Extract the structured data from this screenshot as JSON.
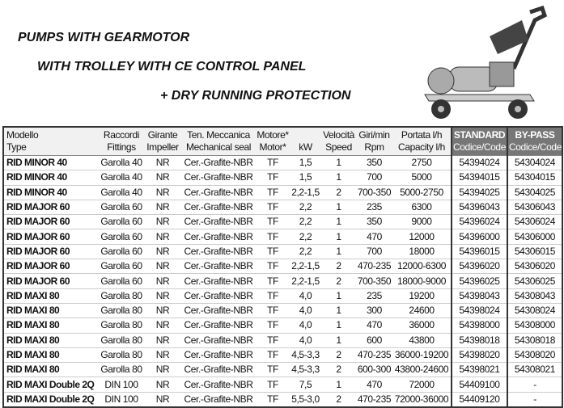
{
  "title": [
    "PUMPS WITH GEARMOTOR",
    "WITH TROLLEY WITH CE CONTROL PANEL",
    "+ DRY RUNNING PROTECTION"
  ],
  "headers": [
    [
      "Modello",
      "Type"
    ],
    [
      "Raccordi",
      "Fittings"
    ],
    [
      "Girante",
      "Impeller"
    ],
    [
      "Ten. Meccanica",
      "Mechanical seal"
    ],
    [
      "Motore*",
      "Motor*"
    ],
    [
      "kW",
      ""
    ],
    [
      "Velocità",
      "Speed"
    ],
    [
      "Giri/min",
      "Rpm"
    ],
    [
      "Portata l/h",
      "Capacity l/h"
    ],
    [
      "STANDARD",
      "Codice/Code"
    ],
    [
      "BY-PASS",
      "Codice/Code"
    ]
  ],
  "rows": [
    [
      "RID MINOR 40",
      "Garolla 40",
      "NR",
      "Cer.-Grafite-NBR",
      "TF",
      "1,5",
      "1",
      "350",
      "2750",
      "54394024",
      "54304024"
    ],
    [
      "RID MINOR 40",
      "Garolla 40",
      "NR",
      "Cer.-Grafite-NBR",
      "TF",
      "1,5",
      "1",
      "700",
      "5000",
      "54394015",
      "54304015"
    ],
    [
      "RID MINOR 40",
      "Garolla 40",
      "NR",
      "Cer.-Grafite-NBR",
      "TF",
      "2,2-1,5",
      "2",
      "700-350",
      "5000-2750",
      "54394025",
      "54304025"
    ],
    [
      "RID MAJOR 60",
      "Garolla 60",
      "NR",
      "Cer.-Grafite-NBR",
      "TF",
      "2,2",
      "1",
      "235",
      "6300",
      "54396043",
      "54306043"
    ],
    [
      "RID MAJOR 60",
      "Garolla 60",
      "NR",
      "Cer.-Grafite-NBR",
      "TF",
      "2,2",
      "1",
      "350",
      "9000",
      "54396024",
      "54306024"
    ],
    [
      "RID MAJOR 60",
      "Garolla 60",
      "NR",
      "Cer.-Grafite-NBR",
      "TF",
      "2,2",
      "1",
      "470",
      "12000",
      "54396000",
      "54306000"
    ],
    [
      "RID MAJOR 60",
      "Garolla 60",
      "NR",
      "Cer.-Grafite-NBR",
      "TF",
      "2,2",
      "1",
      "700",
      "18000",
      "54396015",
      "54306015"
    ],
    [
      "RID MAJOR 60",
      "Garolla 60",
      "NR",
      "Cer.-Grafite-NBR",
      "TF",
      "2,2-1,5",
      "2",
      "470-235",
      "12000-6300",
      "54396020",
      "54306020"
    ],
    [
      "RID MAJOR 60",
      "Garolla 60",
      "NR",
      "Cer.-Grafite-NBR",
      "TF",
      "2,2-1,5",
      "2",
      "700-350",
      "18000-9000",
      "54396025",
      "54306025"
    ],
    [
      "RID MAXI 80",
      "Garolla 80",
      "NR",
      "Cer.-Grafite-NBR",
      "TF",
      "4,0",
      "1",
      "235",
      "19200",
      "54398043",
      "54308043"
    ],
    [
      "RID MAXI 80",
      "Garolla 80",
      "NR",
      "Cer.-Grafite-NBR",
      "TF",
      "4,0",
      "1",
      "300",
      "24600",
      "54398024",
      "54308024"
    ],
    [
      "RID MAXI 80",
      "Garolla 80",
      "NR",
      "Cer.-Grafite-NBR",
      "TF",
      "4,0",
      "1",
      "470",
      "36000",
      "54398000",
      "54308000"
    ],
    [
      "RID MAXI 80",
      "Garolla 80",
      "NR",
      "Cer.-Grafite-NBR",
      "TF",
      "4,0",
      "1",
      "600",
      "43800",
      "54398018",
      "54308018"
    ],
    [
      "RID MAXI 80",
      "Garolla 80",
      "NR",
      "Cer.-Grafite-NBR",
      "TF",
      "4,5-3,3",
      "2",
      "470-235",
      "36000-19200",
      "54398020",
      "54308020"
    ],
    [
      "RID MAXI 80",
      "Garolla 80",
      "NR",
      "Cer.-Grafite-NBR",
      "TF",
      "4,5-3,3",
      "2",
      "600-300",
      "43800-24600",
      "54398021",
      "54308021"
    ],
    [
      "RID MAXI Double 2Q",
      "DIN 100",
      "NR",
      "Cer.-Grafite-NBR",
      "TF",
      "7,5",
      "1",
      "470",
      "72000",
      "54409100",
      "-"
    ],
    [
      "RID MAXI Double 2Q",
      "DIN 100",
      "NR",
      "Cer.-Grafite-NBR",
      "TF",
      "5,5-3,0",
      "2",
      "470-235",
      "72000-36000",
      "54409120",
      "-"
    ]
  ]
}
